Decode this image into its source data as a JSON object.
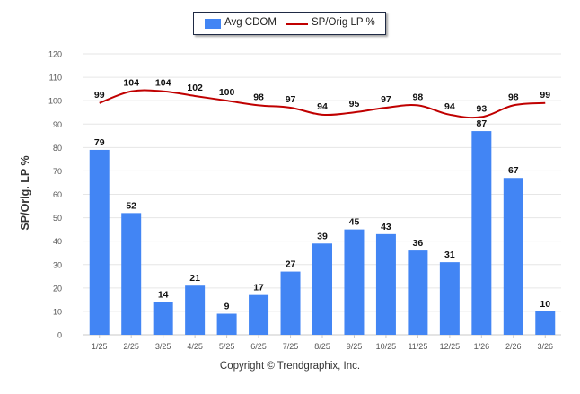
{
  "chart_data": {
    "type": "bar",
    "categories": [
      "1/25",
      "2/25",
      "3/25",
      "4/25",
      "5/25",
      "6/25",
      "7/25",
      "8/25",
      "9/25",
      "10/25",
      "11/25",
      "12/25",
      "1/26",
      "2/26",
      "3/26"
    ],
    "series": [
      {
        "name": "Avg CDOM",
        "kind": "bar",
        "color": "#4285f4",
        "values": [
          79,
          52,
          14,
          21,
          9,
          17,
          27,
          39,
          45,
          43,
          36,
          31,
          87,
          67,
          10
        ]
      },
      {
        "name": "SP/Orig LP %",
        "kind": "line",
        "color": "#c00000",
        "values": [
          99,
          104,
          104,
          102,
          100,
          98,
          97,
          94,
          95,
          97,
          98,
          94,
          93,
          98,
          99
        ]
      }
    ],
    "ylabel": "SP/Orig. LP %",
    "xlabel": "",
    "ylim": [
      0,
      120
    ],
    "yticks": [
      0,
      10,
      20,
      30,
      40,
      50,
      60,
      70,
      80,
      90,
      100,
      110,
      120
    ],
    "grid": true,
    "legend_position": "top-center"
  },
  "footer": "Copyright © Trendgraphix, Inc."
}
